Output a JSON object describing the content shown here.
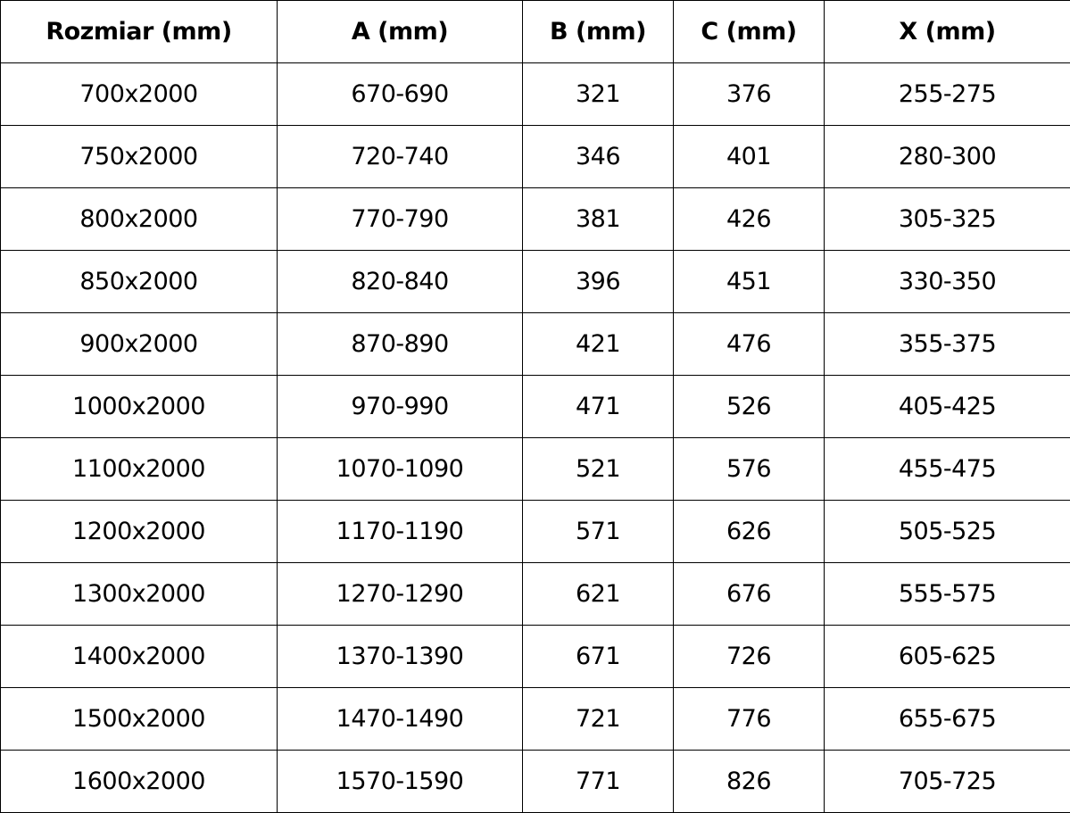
{
  "table": {
    "headers": [
      "Rozmiar (mm)",
      "A (mm)",
      "B (mm)",
      "C (mm)",
      "X (mm)"
    ],
    "rows": [
      [
        "700x2000",
        "670-690",
        "321",
        "376",
        "255-275"
      ],
      [
        "750x2000",
        "720-740",
        "346",
        "401",
        "280-300"
      ],
      [
        "800x2000",
        "770-790",
        "381",
        "426",
        "305-325"
      ],
      [
        "850x2000",
        "820-840",
        "396",
        "451",
        "330-350"
      ],
      [
        "900x2000",
        "870-890",
        "421",
        "476",
        "355-375"
      ],
      [
        "1000x2000",
        "970-990",
        "471",
        "526",
        "405-425"
      ],
      [
        "1100x2000",
        "1070-1090",
        "521",
        "576",
        "455-475"
      ],
      [
        "1200x2000",
        "1170-1190",
        "571",
        "626",
        "505-525"
      ],
      [
        "1300x2000",
        "1270-1290",
        "621",
        "676",
        "555-575"
      ],
      [
        "1400x2000",
        "1370-1390",
        "671",
        "726",
        "605-625"
      ],
      [
        "1500x2000",
        "1470-1490",
        "721",
        "776",
        "655-675"
      ],
      [
        "1600x2000",
        "1570-1590",
        "771",
        "826",
        "705-725"
      ]
    ]
  }
}
